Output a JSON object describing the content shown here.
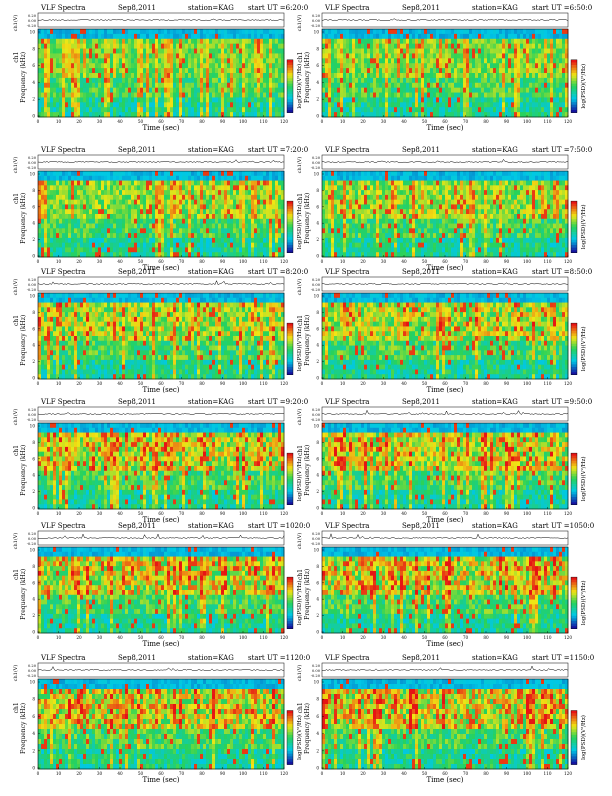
{
  "page": {
    "header_left": "VLF Spectra",
    "station": "station=KAG",
    "date": "Sep8,2011",
    "trace_ylabel": "ch1(V)",
    "spec_ylabel_top": "ch1",
    "spec_ylabel": "Frequency (kHz)",
    "xlabel": "Time (sec)",
    "colorbar_label": "log(PSD)(V²/Hz)",
    "trace_ticks": [
      "0.20",
      "0.00",
      "-0.20"
    ],
    "freq_ticks": [
      "10",
      "8",
      "6",
      "4",
      "2",
      "0"
    ],
    "time_ticks": [
      "0",
      "10",
      "20",
      "30",
      "40",
      "50",
      "60",
      "70",
      "80",
      "90",
      "100",
      "110",
      "120"
    ]
  },
  "chart_data": [
    {
      "type": "heatmap",
      "panel": "left",
      "start": "start UT =6:20:0",
      "x_range": [
        0,
        120
      ],
      "y_range": [
        0,
        10
      ],
      "intensity": 0.4
    },
    {
      "type": "heatmap",
      "panel": "right",
      "start": "start UT =6:50:0",
      "x_range": [
        0,
        120
      ],
      "y_range": [
        0,
        10
      ],
      "intensity": 0.45
    },
    {
      "type": "heatmap",
      "panel": "left",
      "start": "start UT =7:20:0",
      "x_range": [
        0,
        120
      ],
      "y_range": [
        0,
        10
      ],
      "intensity": 0.5
    },
    {
      "type": "heatmap",
      "panel": "right",
      "start": "start UT =7:50:0",
      "x_range": [
        0,
        120
      ],
      "y_range": [
        0,
        10
      ],
      "intensity": 0.55
    },
    {
      "type": "heatmap",
      "panel": "left",
      "start": "start UT =8:20:0",
      "x_range": [
        0,
        120
      ],
      "y_range": [
        0,
        10
      ],
      "intensity": 0.65
    },
    {
      "type": "heatmap",
      "panel": "right",
      "start": "start UT =8:50:0",
      "x_range": [
        0,
        120
      ],
      "y_range": [
        0,
        10
      ],
      "intensity": 0.7
    },
    {
      "type": "heatmap",
      "panel": "left",
      "start": "start UT =9:20:0",
      "x_range": [
        0,
        120
      ],
      "y_range": [
        0,
        10
      ],
      "intensity": 0.72
    },
    {
      "type": "heatmap",
      "panel": "right",
      "start": "start UT =9:50:0",
      "x_range": [
        0,
        120
      ],
      "y_range": [
        0,
        10
      ],
      "intensity": 0.75
    },
    {
      "type": "heatmap",
      "panel": "left",
      "start": "start UT =1020:0",
      "x_range": [
        0,
        120
      ],
      "y_range": [
        0,
        10
      ],
      "intensity": 0.8
    },
    {
      "type": "heatmap",
      "panel": "right",
      "start": "start UT =1050:0",
      "x_range": [
        0,
        120
      ],
      "y_range": [
        0,
        10
      ],
      "intensity": 0.82
    },
    {
      "type": "heatmap",
      "panel": "left",
      "start": "start UT =1120:0",
      "x_range": [
        0,
        120
      ],
      "y_range": [
        0,
        10
      ],
      "intensity": 0.85
    },
    {
      "type": "heatmap",
      "panel": "right",
      "start": "start UT =1150:0",
      "x_range": [
        0,
        120
      ],
      "y_range": [
        0,
        10
      ],
      "intensity": 0.85
    }
  ]
}
